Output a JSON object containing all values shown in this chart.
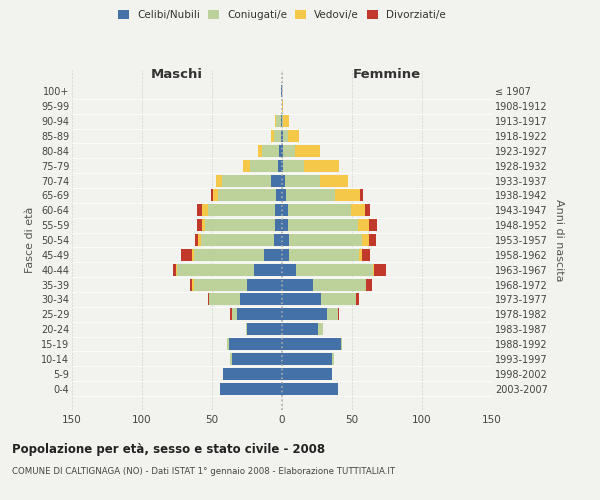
{
  "age_groups": [
    "0-4",
    "5-9",
    "10-14",
    "15-19",
    "20-24",
    "25-29",
    "30-34",
    "35-39",
    "40-44",
    "45-49",
    "50-54",
    "55-59",
    "60-64",
    "65-69",
    "70-74",
    "75-79",
    "80-84",
    "85-89",
    "90-94",
    "95-99",
    "100+"
  ],
  "birth_years": [
    "2003-2007",
    "1998-2002",
    "1993-1997",
    "1988-1992",
    "1983-1987",
    "1978-1982",
    "1973-1977",
    "1968-1972",
    "1963-1967",
    "1958-1962",
    "1953-1957",
    "1948-1952",
    "1943-1947",
    "1938-1942",
    "1933-1937",
    "1928-1932",
    "1923-1927",
    "1918-1922",
    "1913-1917",
    "1908-1912",
    "≤ 1907"
  ],
  "males": {
    "celibi": [
      44,
      42,
      36,
      38,
      25,
      32,
      30,
      25,
      20,
      13,
      6,
      5,
      5,
      4,
      8,
      3,
      2,
      1,
      1,
      0,
      1
    ],
    "coniugati": [
      0,
      0,
      1,
      1,
      1,
      4,
      22,
      38,
      55,
      50,
      52,
      50,
      48,
      42,
      35,
      20,
      12,
      5,
      3,
      0,
      0
    ],
    "vedovi": [
      0,
      0,
      0,
      0,
      0,
      0,
      0,
      1,
      1,
      1,
      2,
      2,
      4,
      3,
      4,
      5,
      3,
      2,
      1,
      0,
      0
    ],
    "divorziati": [
      0,
      0,
      0,
      0,
      0,
      1,
      1,
      2,
      2,
      8,
      2,
      4,
      4,
      2,
      0,
      0,
      0,
      0,
      0,
      0,
      0
    ]
  },
  "females": {
    "nubili": [
      40,
      36,
      36,
      42,
      26,
      32,
      28,
      22,
      10,
      5,
      5,
      4,
      4,
      3,
      2,
      1,
      1,
      1,
      0,
      0,
      0
    ],
    "coniugate": [
      0,
      0,
      1,
      1,
      3,
      8,
      25,
      38,
      55,
      50,
      52,
      50,
      45,
      35,
      25,
      15,
      8,
      3,
      1,
      0,
      0
    ],
    "vedove": [
      0,
      0,
      0,
      0,
      0,
      0,
      0,
      0,
      1,
      2,
      5,
      8,
      10,
      18,
      20,
      25,
      18,
      8,
      4,
      1,
      0
    ],
    "divorziate": [
      0,
      0,
      0,
      0,
      0,
      1,
      2,
      4,
      8,
      6,
      5,
      6,
      4,
      2,
      0,
      0,
      0,
      0,
      0,
      0,
      0
    ]
  },
  "colors": {
    "celibi": "#4472a8",
    "coniugati": "#bdd19a",
    "vedovi": "#f5c84a",
    "divorziati": "#c0392b"
  },
  "title": "Popolazione per età, sesso e stato civile - 2008",
  "subtitle": "COMUNE DI CALTIGNAGA (NO) - Dati ISTAT 1° gennaio 2008 - Elaborazione TUTTITALIA.IT",
  "xlim": 150,
  "xlabel_left": "Maschi",
  "xlabel_right": "Femmine",
  "ylabel_left": "Fasce di età",
  "ylabel_right": "Anni di nascita",
  "background_color": "#f2f2ee",
  "grid_color": "#cccccc"
}
